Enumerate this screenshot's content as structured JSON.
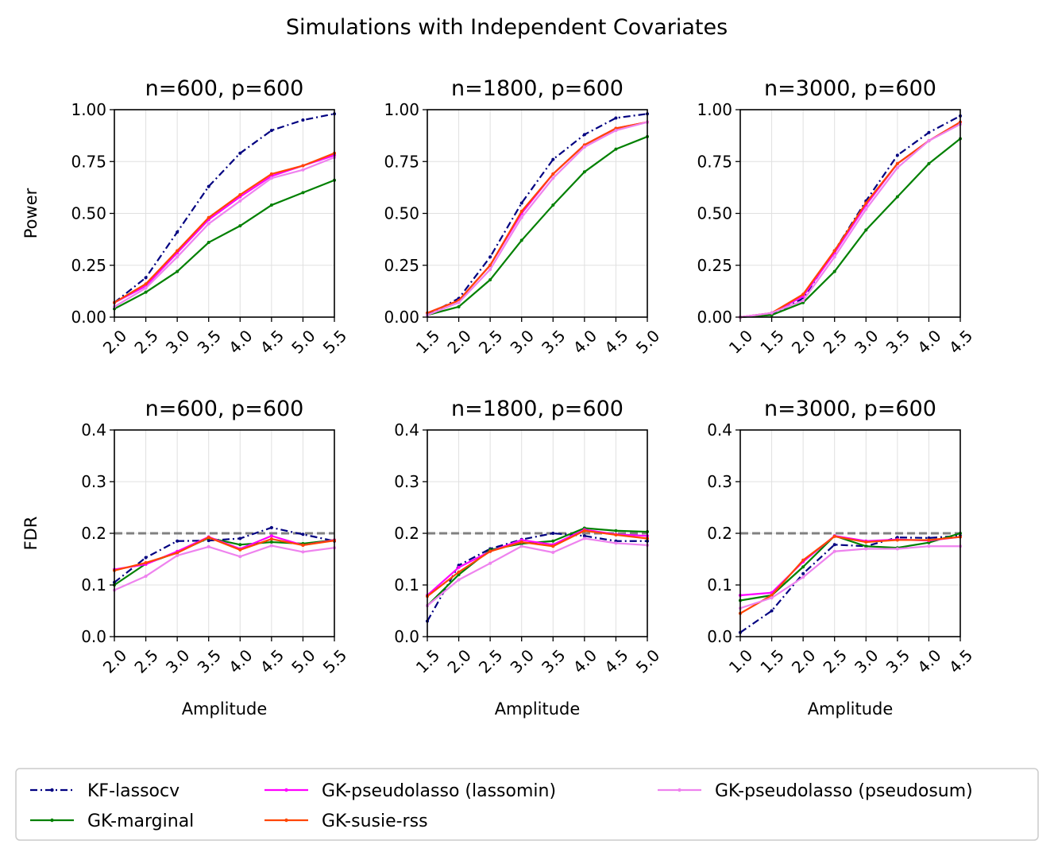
{
  "figure_title": "Simulations with Independent Covariates",
  "colors": {
    "KF-lassocv": "#000080",
    "GK-marginal": "#008000",
    "GK-pseudolasso (lassomin)": "#ff00ff",
    "GK-susie-rss": "#ff4500",
    "GK-pseudolasso (pseudosum)": "#ee82ee",
    "grid": "#e0e0e0",
    "reference": "#808080"
  },
  "legend": [
    {
      "name": "KF-lassocv",
      "style": "dashdot"
    },
    {
      "name": "GK-marginal",
      "style": "solid"
    },
    {
      "name": "GK-pseudolasso (lassomin)",
      "style": "solid"
    },
    {
      "name": "GK-susie-rss",
      "style": "solid"
    },
    {
      "name": "GK-pseudolasso (pseudosum)",
      "style": "solid"
    }
  ],
  "chart_data": [
    {
      "type": "line",
      "title": "n=600, p=600",
      "xlabel": "",
      "ylabel": "Power",
      "x": [
        2.0,
        2.5,
        3.0,
        3.5,
        4.0,
        4.5,
        5.0,
        5.5
      ],
      "xticks": [
        "2.0",
        "2.5",
        "3.0",
        "3.5",
        "4.0",
        "4.5",
        "5.0",
        "5.5"
      ],
      "ylim": [
        0,
        1
      ],
      "yticks": [
        "0.00",
        "0.25",
        "0.50",
        "0.75",
        "1.00"
      ],
      "grid": true,
      "series": [
        {
          "name": "KF-lassocv",
          "values": [
            0.07,
            0.19,
            0.41,
            0.63,
            0.79,
            0.9,
            0.95,
            0.98
          ]
        },
        {
          "name": "GK-marginal",
          "values": [
            0.04,
            0.12,
            0.22,
            0.36,
            0.44,
            0.54,
            0.6,
            0.66
          ]
        },
        {
          "name": "GK-pseudolasso (lassomin)",
          "values": [
            0.07,
            0.15,
            0.31,
            0.47,
            0.58,
            0.68,
            0.73,
            0.78
          ]
        },
        {
          "name": "GK-susie-rss",
          "values": [
            0.07,
            0.16,
            0.32,
            0.48,
            0.59,
            0.69,
            0.73,
            0.79
          ]
        },
        {
          "name": "GK-pseudolasso (pseudosum)",
          "values": [
            0.05,
            0.14,
            0.29,
            0.45,
            0.56,
            0.67,
            0.71,
            0.77
          ]
        }
      ]
    },
    {
      "type": "line",
      "title": "n=1800, p=600",
      "xlabel": "",
      "ylabel": "",
      "x": [
        1.5,
        2.0,
        2.5,
        3.0,
        3.5,
        4.0,
        4.5,
        5.0
      ],
      "xticks": [
        "1.5",
        "2.0",
        "2.5",
        "3.0",
        "3.5",
        "4.0",
        "4.5",
        "5.0"
      ],
      "ylim": [
        0,
        1
      ],
      "yticks": [
        "0.00",
        "0.25",
        "0.50",
        "0.75",
        "1.00"
      ],
      "grid": true,
      "series": [
        {
          "name": "KF-lassocv",
          "values": [
            0.01,
            0.09,
            0.29,
            0.55,
            0.76,
            0.88,
            0.96,
            0.98
          ]
        },
        {
          "name": "GK-marginal",
          "values": [
            0.01,
            0.05,
            0.18,
            0.37,
            0.54,
            0.7,
            0.81,
            0.87
          ]
        },
        {
          "name": "GK-pseudolasso (lassomin)",
          "values": [
            0.02,
            0.08,
            0.25,
            0.5,
            0.69,
            0.83,
            0.91,
            0.94
          ]
        },
        {
          "name": "GK-susie-rss",
          "values": [
            0.02,
            0.08,
            0.25,
            0.51,
            0.69,
            0.83,
            0.91,
            0.94
          ]
        },
        {
          "name": "GK-pseudolasso (pseudosum)",
          "values": [
            0.01,
            0.07,
            0.23,
            0.48,
            0.67,
            0.82,
            0.9,
            0.94
          ]
        }
      ]
    },
    {
      "type": "line",
      "title": "n=3000, p=600",
      "xlabel": "",
      "ylabel": "",
      "x": [
        1.0,
        1.5,
        2.0,
        2.5,
        3.0,
        3.5,
        4.0,
        4.5
      ],
      "xticks": [
        "1.0",
        "1.5",
        "2.0",
        "2.5",
        "3.0",
        "3.5",
        "4.0",
        "4.5"
      ],
      "ylim": [
        0,
        1
      ],
      "yticks": [
        "0.00",
        "0.25",
        "0.50",
        "0.75",
        "1.00"
      ],
      "grid": true,
      "series": [
        {
          "name": "KF-lassocv",
          "values": [
            0.0,
            0.01,
            0.09,
            0.32,
            0.56,
            0.78,
            0.89,
            0.97
          ]
        },
        {
          "name": "GK-marginal",
          "values": [
            0.0,
            0.01,
            0.07,
            0.22,
            0.42,
            0.58,
            0.74,
            0.86
          ]
        },
        {
          "name": "GK-pseudolasso (lassomin)",
          "values": [
            0.0,
            0.02,
            0.1,
            0.31,
            0.54,
            0.74,
            0.85,
            0.94
          ]
        },
        {
          "name": "GK-susie-rss",
          "values": [
            0.0,
            0.02,
            0.11,
            0.32,
            0.55,
            0.74,
            0.85,
            0.94
          ]
        },
        {
          "name": "GK-pseudolasso (pseudosum)",
          "values": [
            0.0,
            0.02,
            0.08,
            0.29,
            0.52,
            0.72,
            0.85,
            0.93
          ]
        }
      ]
    },
    {
      "type": "line",
      "title": "n=600, p=600",
      "xlabel": "Amplitude",
      "ylabel": "FDR",
      "x": [
        2.0,
        2.5,
        3.0,
        3.5,
        4.0,
        4.5,
        5.0,
        5.5
      ],
      "xticks": [
        "2.0",
        "2.5",
        "3.0",
        "3.5",
        "4.0",
        "4.5",
        "5.0",
        "5.5"
      ],
      "ylim": [
        0,
        0.4
      ],
      "yticks": [
        "0.0",
        "0.1",
        "0.2",
        "0.3",
        "0.4"
      ],
      "grid": true,
      "reference_line": 0.2,
      "series": [
        {
          "name": "KF-lassocv",
          "values": [
            0.105,
            0.153,
            0.185,
            0.186,
            0.19,
            0.211,
            0.198,
            0.185
          ]
        },
        {
          "name": "GK-marginal",
          "values": [
            0.1,
            0.141,
            0.163,
            0.191,
            0.178,
            0.183,
            0.18,
            0.187
          ]
        },
        {
          "name": "GK-pseudolasso (lassomin)",
          "values": [
            0.13,
            0.14,
            0.165,
            0.193,
            0.17,
            0.195,
            0.177,
            0.187
          ]
        },
        {
          "name": "GK-susie-rss",
          "values": [
            0.128,
            0.143,
            0.162,
            0.192,
            0.168,
            0.189,
            0.177,
            0.186
          ]
        },
        {
          "name": "GK-pseudolasso (pseudosum)",
          "values": [
            0.09,
            0.117,
            0.157,
            0.174,
            0.155,
            0.176,
            0.164,
            0.172
          ]
        }
      ]
    },
    {
      "type": "line",
      "title": "n=1800, p=600",
      "xlabel": "Amplitude",
      "ylabel": "",
      "x": [
        1.5,
        2.0,
        2.5,
        3.0,
        3.5,
        4.0,
        4.5,
        5.0
      ],
      "xticks": [
        "1.5",
        "2.0",
        "2.5",
        "3.0",
        "3.5",
        "4.0",
        "4.5",
        "5.0"
      ],
      "ylim": [
        0,
        0.4
      ],
      "yticks": [
        "0.0",
        "0.1",
        "0.2",
        "0.3",
        "0.4"
      ],
      "grid": true,
      "reference_line": 0.2,
      "series": [
        {
          "name": "KF-lassocv",
          "values": [
            0.03,
            0.138,
            0.17,
            0.188,
            0.2,
            0.195,
            0.185,
            0.185
          ]
        },
        {
          "name": "GK-marginal",
          "values": [
            0.06,
            0.12,
            0.168,
            0.18,
            0.185,
            0.21,
            0.205,
            0.203
          ]
        },
        {
          "name": "GK-pseudolasso (lassomin)",
          "values": [
            0.08,
            0.134,
            0.165,
            0.187,
            0.178,
            0.207,
            0.198,
            0.195
          ]
        },
        {
          "name": "GK-susie-rss",
          "values": [
            0.078,
            0.125,
            0.165,
            0.183,
            0.175,
            0.205,
            0.197,
            0.19
          ]
        },
        {
          "name": "GK-pseudolasso (pseudosum)",
          "values": [
            0.06,
            0.11,
            0.142,
            0.175,
            0.163,
            0.19,
            0.181,
            0.177
          ]
        }
      ]
    },
    {
      "type": "line",
      "title": "n=3000, p=600",
      "xlabel": "Amplitude",
      "ylabel": "",
      "x": [
        1.0,
        1.5,
        2.0,
        2.5,
        3.0,
        3.5,
        4.0,
        4.5
      ],
      "xticks": [
        "1.0",
        "1.5",
        "2.0",
        "2.5",
        "3.0",
        "3.5",
        "4.0",
        "4.5"
      ],
      "ylim": [
        0,
        0.4
      ],
      "yticks": [
        "0.0",
        "0.1",
        "0.2",
        "0.3",
        "0.4"
      ],
      "grid": true,
      "reference_line": 0.2,
      "series": [
        {
          "name": "KF-lassocv",
          "values": [
            0.008,
            0.05,
            0.122,
            0.178,
            0.175,
            0.192,
            0.191,
            0.195
          ]
        },
        {
          "name": "GK-marginal",
          "values": [
            0.07,
            0.08,
            0.135,
            0.195,
            0.175,
            0.172,
            0.182,
            0.2
          ]
        },
        {
          "name": "GK-pseudolasso (lassomin)",
          "values": [
            0.08,
            0.085,
            0.145,
            0.195,
            0.185,
            0.188,
            0.186,
            0.193
          ]
        },
        {
          "name": "GK-susie-rss",
          "values": [
            0.045,
            0.08,
            0.148,
            0.194,
            0.183,
            0.187,
            0.187,
            0.193
          ]
        },
        {
          "name": "GK-pseudolasso (pseudosum)",
          "values": [
            0.055,
            0.075,
            0.115,
            0.165,
            0.17,
            0.17,
            0.175,
            0.175
          ]
        }
      ]
    }
  ]
}
